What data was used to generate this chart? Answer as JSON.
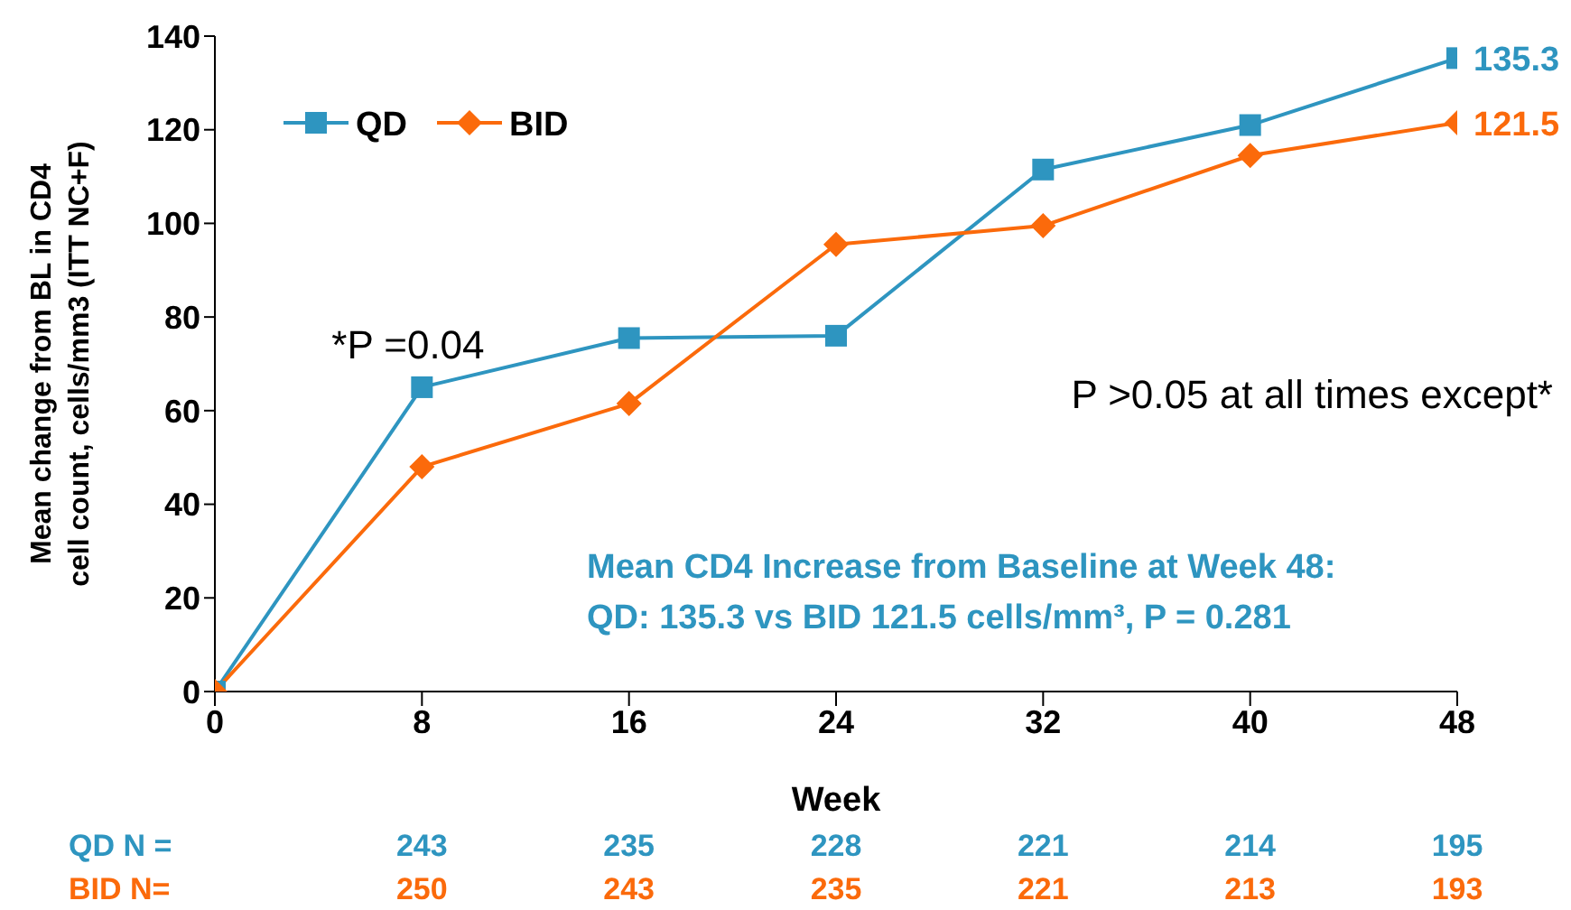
{
  "chart_data": {
    "type": "line",
    "xlabel": "Week",
    "ylabel": "Mean change from BL in CD4 cell count, cells/mm3 (ITT NC+F)",
    "x": [
      0,
      8,
      16,
      24,
      32,
      40,
      48
    ],
    "series": [
      {
        "name": "QD",
        "color": "#2e95c0",
        "marker": "square",
        "values": [
          0,
          65,
          75.5,
          76,
          111.5,
          121,
          135.3
        ],
        "value_labels": [
          null,
          null,
          null,
          null,
          null,
          null,
          "135.3"
        ]
      },
      {
        "name": "BID",
        "color": "#fb6a0b",
        "marker": "diamond",
        "values": [
          0,
          48,
          61.5,
          95.5,
          99.5,
          114.5,
          121.5
        ],
        "value_labels": [
          null,
          null,
          null,
          null,
          null,
          null,
          "121.5"
        ]
      }
    ],
    "xlim": [
      0,
      48
    ],
    "xticks": [
      0,
      8,
      16,
      24,
      32,
      40,
      48
    ],
    "ylim": [
      0,
      140
    ],
    "yticks": [
      0,
      20,
      40,
      60,
      80,
      100,
      120,
      140
    ],
    "grid": false,
    "legend": "top left",
    "line_style": "solid",
    "annotations": [
      {
        "text": "*P =0.04",
        "x": 8,
        "y": 65
      },
      "P >0.05 at all times except*",
      "Mean CD4 Increase from Baseline at Week 48:",
      "QD: 135.3 vs BID 121.5 cells/mm³, P = 0.281",
      "QD N =",
      "243",
      "235",
      "228",
      "221",
      "214",
      "195",
      "BID N=",
      "250",
      "243",
      "235",
      "221",
      "213",
      "193"
    ]
  }
}
